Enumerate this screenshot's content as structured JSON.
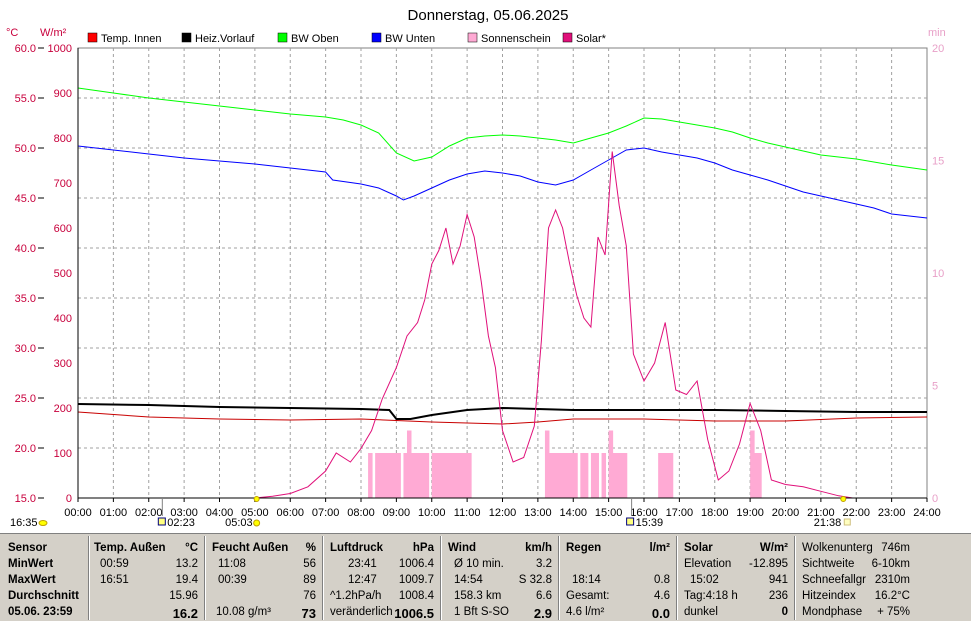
{
  "title": "Donnerstag, 05.06.2025",
  "units": {
    "left_temp": "°C",
    "left_power": "W/m²",
    "right": "min"
  },
  "legend": [
    {
      "label": "Temp. Innen",
      "color": "#ff0000"
    },
    {
      "label": "Heiz.Vorlauf",
      "color": "#000000"
    },
    {
      "label": "BW Oben",
      "color": "#00ff00"
    },
    {
      "label": "BW Unten",
      "color": "#0000ff"
    },
    {
      "label": "Sonnenschein",
      "color": "#ffaad4"
    },
    {
      "label": "Solar*",
      "color": "#e0107a"
    }
  ],
  "markers": {
    "sunrise_time": "05:03",
    "sunset_time": "21:38",
    "moonrise_time": "16:35",
    "moon_upper_time": "02:23",
    "moon_lower_time": "15:39"
  },
  "chart_data": {
    "type": "line",
    "title": "Donnerstag, 05.06.2025",
    "x_ticks": [
      "00:00",
      "01:00",
      "02:00",
      "03:00",
      "04:00",
      "05:00",
      "06:00",
      "07:00",
      "08:00",
      "09:00",
      "10:00",
      "11:00",
      "12:00",
      "13:00",
      "14:00",
      "15:00",
      "16:00",
      "17:00",
      "18:00",
      "19:00",
      "20:00",
      "21:00",
      "22:00",
      "23:00",
      "24:00"
    ],
    "y_temp_ticks": [
      "60.0",
      "55.0",
      "50.0",
      "45.0",
      "40.0",
      "35.0",
      "30.0",
      "25.0",
      "20.0",
      "15.0"
    ],
    "y_power_ticks": [
      "1000",
      "900",
      "800",
      "700",
      "600",
      "500",
      "400",
      "300",
      "200",
      "100",
      "0"
    ],
    "y_min_ticks": [
      "20",
      "15",
      "10",
      "5",
      "0"
    ],
    "y_temp_range": [
      15,
      60
    ],
    "y_power_range": [
      0,
      1000
    ],
    "y_min_range": [
      0,
      20
    ],
    "x_range_hours": [
      0,
      24
    ],
    "grid": true,
    "series": [
      {
        "name": "BW Oben",
        "axis": "temp",
        "color": "#00ff00",
        "points": [
          [
            0,
            56.0
          ],
          [
            1,
            55.5
          ],
          [
            2,
            55.0
          ],
          [
            3,
            54.6
          ],
          [
            4,
            54.2
          ],
          [
            5,
            53.8
          ],
          [
            6,
            53.4
          ],
          [
            7,
            53.1
          ],
          [
            7.5,
            52.8
          ],
          [
            8,
            52.3
          ],
          [
            8.5,
            51.5
          ],
          [
            9,
            49.5
          ],
          [
            9.5,
            48.7
          ],
          [
            10,
            49.1
          ],
          [
            10.5,
            50.2
          ],
          [
            11,
            51.0
          ],
          [
            11.5,
            51.2
          ],
          [
            12,
            51.3
          ],
          [
            12.5,
            51.2
          ],
          [
            13,
            51.0
          ],
          [
            13.5,
            50.8
          ],
          [
            14,
            50.5
          ],
          [
            14.5,
            51.0
          ],
          [
            15,
            51.5
          ],
          [
            15.5,
            52.2
          ],
          [
            16,
            53.0
          ],
          [
            16.5,
            52.9
          ],
          [
            17,
            52.6
          ],
          [
            17.5,
            52.3
          ],
          [
            18,
            52.0
          ],
          [
            18.5,
            51.6
          ],
          [
            19,
            51.0
          ],
          [
            19.5,
            50.5
          ],
          [
            20,
            50.1
          ],
          [
            20.5,
            49.7
          ],
          [
            21,
            49.3
          ],
          [
            21.5,
            49.1
          ],
          [
            22,
            48.9
          ],
          [
            23,
            48.3
          ],
          [
            24,
            47.8
          ]
        ]
      },
      {
        "name": "BW Unten",
        "axis": "temp",
        "color": "#0000ff",
        "points": [
          [
            0,
            50.2
          ],
          [
            1,
            49.8
          ],
          [
            2,
            49.4
          ],
          [
            3,
            49.0
          ],
          [
            4,
            48.7
          ],
          [
            5,
            48.4
          ],
          [
            6,
            48.0
          ],
          [
            7,
            47.6
          ],
          [
            7.2,
            46.8
          ],
          [
            8,
            46.4
          ],
          [
            8.5,
            46.0
          ],
          [
            9,
            45.2
          ],
          [
            9.2,
            44.8
          ],
          [
            9.5,
            45.2
          ],
          [
            10,
            46.0
          ],
          [
            10.5,
            46.8
          ],
          [
            11,
            47.4
          ],
          [
            11.5,
            47.7
          ],
          [
            12,
            47.5
          ],
          [
            12.5,
            47.2
          ],
          [
            13,
            46.6
          ],
          [
            13.5,
            46.3
          ],
          [
            14,
            46.8
          ],
          [
            14.5,
            47.8
          ],
          [
            15,
            48.8
          ],
          [
            15.5,
            49.8
          ],
          [
            16,
            50.0
          ],
          [
            16.5,
            49.6
          ],
          [
            17,
            49.3
          ],
          [
            17.5,
            49.0
          ],
          [
            18,
            48.5
          ],
          [
            18.5,
            47.8
          ],
          [
            19,
            47.3
          ],
          [
            19.5,
            46.8
          ],
          [
            20,
            46.2
          ],
          [
            20.5,
            45.6
          ],
          [
            21,
            45.2
          ],
          [
            21.5,
            44.8
          ],
          [
            22,
            44.4
          ],
          [
            22.5,
            44.0
          ],
          [
            23,
            43.4
          ],
          [
            24,
            43.0
          ]
        ]
      },
      {
        "name": "Heiz.Vorlauf",
        "axis": "temp",
        "color": "#000000",
        "points": [
          [
            0,
            24.4
          ],
          [
            2,
            24.3
          ],
          [
            4,
            24.1
          ],
          [
            6,
            24.0
          ],
          [
            8,
            23.9
          ],
          [
            8.8,
            23.8
          ],
          [
            9,
            22.9
          ],
          [
            9.4,
            22.9
          ],
          [
            10,
            23.3
          ],
          [
            11,
            23.8
          ],
          [
            12,
            24.0
          ],
          [
            13,
            23.9
          ],
          [
            14,
            23.8
          ],
          [
            16,
            23.8
          ],
          [
            18,
            23.8
          ],
          [
            20,
            23.7
          ],
          [
            22,
            23.6
          ],
          [
            24,
            23.6
          ]
        ]
      },
      {
        "name": "Temp. Innen",
        "axis": "temp",
        "color": "#c80000",
        "points": [
          [
            0,
            23.6
          ],
          [
            2,
            23.1
          ],
          [
            4,
            22.9
          ],
          [
            6,
            22.8
          ],
          [
            8,
            22.9
          ],
          [
            10,
            22.6
          ],
          [
            12,
            22.4
          ],
          [
            13,
            22.6
          ],
          [
            14,
            22.9
          ],
          [
            16,
            22.9
          ],
          [
            18,
            22.7
          ],
          [
            20,
            22.7
          ],
          [
            22,
            23.0
          ],
          [
            24,
            23.1
          ]
        ]
      },
      {
        "name": "Solar*",
        "axis": "power",
        "color": "#e0107a",
        "points": [
          [
            5.0,
            0
          ],
          [
            5.5,
            4
          ],
          [
            6.0,
            10
          ],
          [
            6.5,
            25
          ],
          [
            7.0,
            60
          ],
          [
            7.3,
            100
          ],
          [
            7.7,
            80
          ],
          [
            8.0,
            110
          ],
          [
            8.3,
            150
          ],
          [
            8.6,
            220
          ],
          [
            9.0,
            290
          ],
          [
            9.3,
            360
          ],
          [
            9.6,
            390
          ],
          [
            9.8,
            440
          ],
          [
            10.0,
            520
          ],
          [
            10.2,
            550
          ],
          [
            10.4,
            600
          ],
          [
            10.6,
            520
          ],
          [
            10.8,
            560
          ],
          [
            11.0,
            630
          ],
          [
            11.2,
            580
          ],
          [
            11.4,
            480
          ],
          [
            11.6,
            360
          ],
          [
            11.8,
            290
          ],
          [
            12.0,
            150
          ],
          [
            12.3,
            80
          ],
          [
            12.6,
            90
          ],
          [
            12.9,
            160
          ],
          [
            13.1,
            350
          ],
          [
            13.3,
            600
          ],
          [
            13.5,
            640
          ],
          [
            13.7,
            600
          ],
          [
            13.9,
            520
          ],
          [
            14.1,
            450
          ],
          [
            14.3,
            400
          ],
          [
            14.5,
            380
          ],
          [
            14.7,
            580
          ],
          [
            14.9,
            540
          ],
          [
            15.1,
            770
          ],
          [
            15.3,
            650
          ],
          [
            15.5,
            560
          ],
          [
            15.7,
            320
          ],
          [
            16.0,
            260
          ],
          [
            16.3,
            300
          ],
          [
            16.6,
            390
          ],
          [
            16.9,
            240
          ],
          [
            17.2,
            230
          ],
          [
            17.5,
            260
          ],
          [
            17.8,
            130
          ],
          [
            18.1,
            40
          ],
          [
            18.4,
            60
          ],
          [
            18.7,
            120
          ],
          [
            19.0,
            210
          ],
          [
            19.3,
            150
          ],
          [
            19.6,
            40
          ],
          [
            20.0,
            30
          ],
          [
            20.5,
            25
          ],
          [
            21.0,
            15
          ],
          [
            21.5,
            5
          ],
          [
            21.9,
            0
          ]
        ]
      },
      {
        "name": "Sonnenschein",
        "axis": "min",
        "color": "#ffaad4",
        "type": "bar",
        "points": [
          [
            8.2,
            2
          ],
          [
            8.4,
            2
          ],
          [
            8.5,
            2
          ],
          [
            8.6,
            2
          ],
          [
            8.7,
            2
          ],
          [
            8.8,
            2
          ],
          [
            8.9,
            2
          ],
          [
            9.0,
            2
          ],
          [
            9.2,
            2
          ],
          [
            9.3,
            3
          ],
          [
            9.4,
            2
          ],
          [
            9.5,
            2
          ],
          [
            9.6,
            2
          ],
          [
            9.7,
            2
          ],
          [
            9.8,
            2
          ],
          [
            10.0,
            2
          ],
          [
            10.1,
            2
          ],
          [
            10.2,
            2
          ],
          [
            10.3,
            2
          ],
          [
            10.4,
            2
          ],
          [
            10.5,
            2
          ],
          [
            10.6,
            2
          ],
          [
            10.7,
            2
          ],
          [
            10.8,
            2
          ],
          [
            10.9,
            2
          ],
          [
            11.0,
            2
          ],
          [
            13.2,
            3
          ],
          [
            13.3,
            2
          ],
          [
            13.4,
            2
          ],
          [
            13.5,
            2
          ],
          [
            13.6,
            2
          ],
          [
            13.7,
            2
          ],
          [
            13.8,
            2
          ],
          [
            13.9,
            2
          ],
          [
            14.0,
            2
          ],
          [
            14.2,
            2
          ],
          [
            14.3,
            2
          ],
          [
            14.5,
            2
          ],
          [
            14.6,
            2
          ],
          [
            14.8,
            2
          ],
          [
            15.0,
            3
          ],
          [
            15.1,
            2
          ],
          [
            15.2,
            2
          ],
          [
            15.3,
            2
          ],
          [
            15.4,
            2
          ],
          [
            16.4,
            2
          ],
          [
            16.5,
            2
          ],
          [
            16.6,
            2
          ],
          [
            16.7,
            2
          ],
          [
            19.0,
            3
          ],
          [
            19.1,
            2
          ],
          [
            19.2,
            2
          ]
        ]
      }
    ]
  },
  "stats": {
    "labels": {
      "sensor": "Sensor",
      "min": "MinWert",
      "max": "MaxWert",
      "avg": "Durchschnitt",
      "now": "05.06. 23:59"
    },
    "temp": {
      "title": "Temp. Außen",
      "unit": "°C",
      "min_time": "00:59",
      "min": "13.2",
      "max_time": "16:51",
      "max": "19.4",
      "avg": "15.96",
      "now": "16.2"
    },
    "humid": {
      "title": "Feucht Außen",
      "unit": "%",
      "min_time": "11:08",
      "min": "56",
      "max_time": "00:39",
      "max": "89",
      "avg": "76",
      "abs": "10.08 g/m³",
      "now": "73"
    },
    "press": {
      "title": "Luftdruck",
      "unit": "hPa",
      "min_time": "23:41",
      "min": "1006.4",
      "max_time": "12:47",
      "max": "1009.7",
      "trend_label": "^1.2hPa/h",
      "trend": "1008.4",
      "status": "veränderlich",
      "now": "1006.5"
    },
    "wind": {
      "title": "Wind",
      "unit": "km/h",
      "r1_label": "Ø 10 min.",
      "r1": "3.2",
      "r2_time": "14:54",
      "r2": "S 32.8",
      "r3_label": "158.3 km",
      "r3": "6.6",
      "r4_label": "1 Bft S-SO",
      "r4": "2.9"
    },
    "rain": {
      "title": "Regen",
      "unit": "l/m²",
      "r2_time": "18:14",
      "r2": "0.8",
      "r3_label": "Gesamt:",
      "r3": "4.6",
      "r4_label": "4.6 l/m²",
      "r4": "0.0"
    },
    "solar": {
      "title": "Solar",
      "unit": "W/m²",
      "r1_label": "Elevation",
      "r1": "-12.895",
      "r2_time": "15:02",
      "r2": "941",
      "r3_label": "Tag:4:18 h",
      "r3": "236",
      "r4_label": "dunkel",
      "r4": "0"
    },
    "extra": {
      "rows": [
        {
          "label": "Wolkenunterg",
          "value": "746m"
        },
        {
          "label": "Sichtweite",
          "value": "6-10km"
        },
        {
          "label": "Schneefallgr",
          "value": "2310m"
        },
        {
          "label": "Hitzeindex",
          "value": "16.2°C"
        },
        {
          "label": "Mondphase",
          "value": "+ 75%"
        }
      ]
    }
  }
}
